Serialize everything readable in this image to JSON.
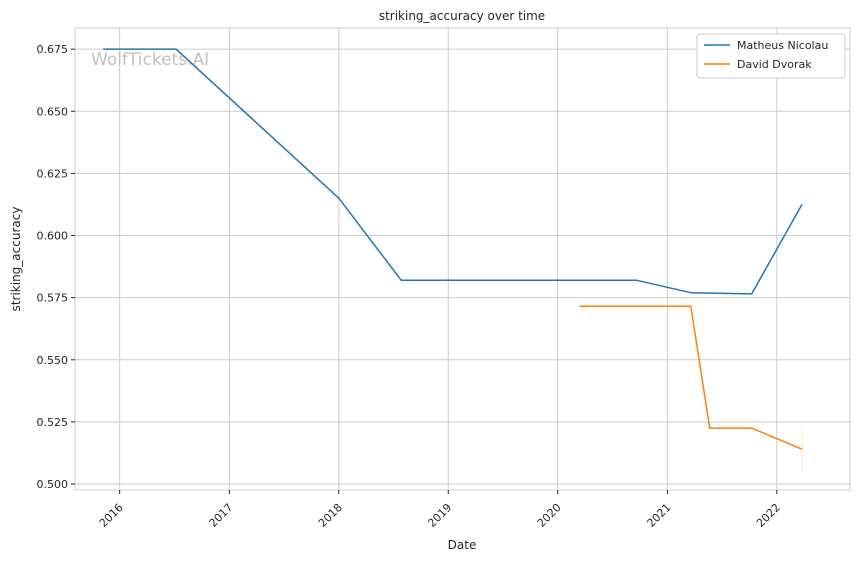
{
  "chart_data": {
    "type": "line",
    "title": "striking_accuracy over time",
    "xlabel": "Date",
    "ylabel": "striking_accuracy",
    "watermark": "WolfTickets.AI",
    "grid": true,
    "legend_position": "top-right",
    "x_ticks": [
      "2016",
      "2017",
      "2018",
      "2019",
      "2020",
      "2021",
      "2022"
    ],
    "y_ticks": [
      "0.500",
      "0.525",
      "0.550",
      "0.575",
      "0.600",
      "0.625",
      "0.650",
      "0.675"
    ],
    "xlim": [
      "2015-08-05",
      "2022-09-02"
    ],
    "ylim": [
      0.4976,
      0.6835
    ],
    "series": [
      {
        "name": "Matheus Nicolau",
        "color": "#1f77b4",
        "points": [
          [
            "2015-11-07",
            0.675
          ],
          [
            "2016-07-07",
            0.675
          ],
          [
            "2018-01-01",
            0.615
          ],
          [
            "2018-07-28",
            0.582
          ],
          [
            "2020-09-19",
            0.582
          ],
          [
            "2021-03-20",
            0.577
          ],
          [
            "2021-10-09",
            0.5765
          ],
          [
            "2022-03-26",
            0.6125
          ]
        ]
      },
      {
        "name": "David Dvorak",
        "color": "#ff7f0e",
        "points": [
          [
            "2020-03-14",
            0.5715
          ],
          [
            "2021-03-20",
            0.5715
          ],
          [
            "2021-05-22",
            0.5225
          ],
          [
            "2021-10-09",
            0.5225
          ],
          [
            "2022-03-26",
            0.514
          ]
        ]
      }
    ]
  }
}
